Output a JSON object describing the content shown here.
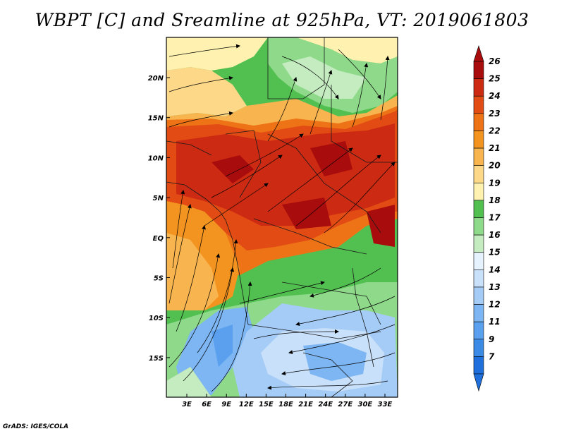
{
  "title": "WBPT [C] and Sreamline at 925hPa, VT: 2019061803",
  "credit": "GrADS: IGES/COLA",
  "lon_ticks": [
    "3E",
    "6E",
    "9E",
    "12E",
    "15E",
    "18E",
    "21E",
    "24E",
    "27E",
    "30E",
    "33E"
  ],
  "lat_ticks": [
    "20N",
    "15N",
    "10N",
    "5N",
    "EQ",
    "5S",
    "10S",
    "15S"
  ],
  "colorbar": {
    "labels": [
      "7",
      "9",
      "11",
      "12",
      "13",
      "14",
      "15",
      "16",
      "17",
      "18",
      "19",
      "20",
      "21",
      "22",
      "23",
      "24",
      "25",
      "26"
    ],
    "colors": [
      "#1f6fdc",
      "#3a8ae6",
      "#5aa0ee",
      "#7db6f2",
      "#a5ccf6",
      "#c8e0fa",
      "#e6f3fe",
      "#c4ecc0",
      "#8ed98a",
      "#52c050",
      "#fff2b0",
      "#fcd888",
      "#f8b44e",
      "#f39420",
      "#ee7316",
      "#e24c14",
      "#cc2a12",
      "#a80c0c"
    ]
  },
  "colors": {
    "frame": "#000000",
    "stream": "#000000",
    "border": "#1a1a1a"
  }
}
